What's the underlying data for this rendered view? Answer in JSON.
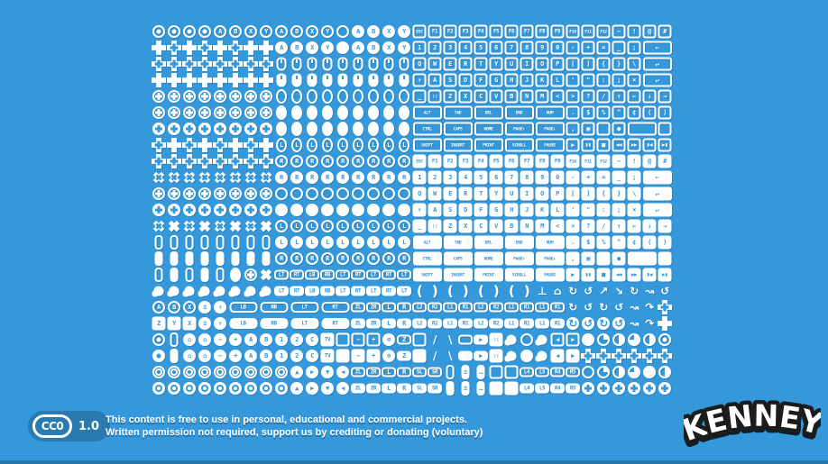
{
  "page": {
    "background_color": "#3498db",
    "bottom_edge_color": "rgba(0,0,0,0.22)",
    "icon_color": "#ffffff",
    "badge_color": "#2a7ab2"
  },
  "license": {
    "badge": {
      "cc_label": "CC0",
      "version": "1.0"
    },
    "line1": "This content is free to use in personal, educational and commercial projects.",
    "line2": "Written permission not required, support us by crediting or donating (voluntary)"
  },
  "brand": {
    "logo_text": "KENNEY"
  },
  "sprite_sheet": {
    "description": "pixel input-prompt icons: gamepad buttons, d-pads, sticks, mice, touch gestures and keyboard keys in outline and solid styles",
    "rows": [
      [
        "cd",
        "cd",
        "cd",
        "cd",
        "c:A",
        "c:B",
        "c:X",
        "c:Y",
        "c:A",
        "c:B",
        "c:X",
        "c:Y",
        "c",
        "C:A",
        "C:B",
        "C:X",
        "C:Y",
        "k:ESC",
        "k:F1",
        "k:F2",
        "k:F3",
        "k:F4",
        "k:F5",
        "k:F6",
        "k:F7",
        "k:F8",
        "k:F9",
        "k:F10",
        "k:F11",
        "k:F12",
        "k:~",
        "k:!",
        "k:@",
        "k:#"
      ],
      [
        "D",
        "d",
        "D",
        "d",
        "D",
        "d",
        "D",
        "D",
        "C:A",
        "C:B",
        "C:X",
        "C:Y",
        "C",
        "C:A",
        "C:B",
        "C:X",
        "C:Y",
        "k:1",
        "k:2",
        "k:3",
        "k:4",
        "k:5",
        "k:6",
        "k:7",
        "k:8",
        "k:9",
        "k:0",
        "k:-",
        "k:+",
        "k:=",
        "k:_",
        "k:;",
        "kw:←"
      ],
      [
        "d",
        "d",
        "d",
        "d",
        "d",
        "d",
        "d",
        "d",
        "m",
        "m",
        "m",
        "m",
        "m",
        "m",
        "m",
        "m",
        "m",
        "k:Q",
        "k:W",
        "k:E",
        "k:R",
        "k:T",
        "k:Y",
        "k:U",
        "k:I",
        "k:O",
        "k:P",
        "k:[",
        "k:]",
        "k:{",
        "k:}",
        "k:\\",
        "kw:↵"
      ],
      [
        "D",
        "D",
        "D",
        "D",
        "D",
        "D",
        "D",
        "D",
        "M",
        "M",
        "M",
        "M",
        "M",
        "M",
        "M",
        "M",
        "M",
        "k:↑",
        "k:A",
        "k:S",
        "k:D",
        "k:F",
        "k:G",
        "k:H",
        "k:J",
        "k:K",
        "k:L",
        "k:'",
        "k:\"",
        "k::",
        "k:;",
        "k:×",
        "kw:↵"
      ],
      [
        "rd",
        "rd",
        "rd",
        "rd",
        "rd",
        "rd",
        "rd",
        "rd",
        "o",
        "o",
        "o",
        "o",
        "o",
        "o",
        "o",
        "o",
        "o",
        "k:_",
        "k:::",
        "k:Z",
        "k:X",
        "k:C",
        "k:V",
        "k:B",
        "k:N",
        "k:M",
        "k:<",
        "k:>",
        "k:?",
        "k:/",
        "k:↑",
        "k:←",
        "k:↓",
        "k:→"
      ],
      [
        "rd",
        "rd",
        "rd",
        "rd",
        "rd",
        "rd",
        "rd",
        "rd",
        "O",
        "O",
        "O",
        "O",
        "O",
        "O",
        "O",
        "O",
        "O",
        "kw:ALT",
        "kw:TAB",
        "kw:DEL",
        "kw:END",
        "kw:NUM",
        "k:.",
        "k:$",
        "k:%",
        "k:^",
        "k:¢",
        "k:(",
        "k:)"
      ],
      [
        "RD",
        "RD",
        "RD",
        "RD",
        "RD",
        "RD",
        "RD",
        "RD",
        "O",
        "O",
        "O",
        "O",
        "O",
        "O",
        "O",
        "O",
        "O",
        "kw:CTRL",
        "kw:CAPS",
        "kw:HOME",
        "kw:PAGE↑",
        "kw:PAGE↓",
        "k:,",
        "k:▣",
        "kx",
        "k:●",
        "kw2",
        "kx"
      ],
      [
        "d",
        "D",
        "d",
        "D",
        "d",
        "D",
        "d",
        "D",
        "o:L",
        "o:L",
        "o:L",
        "o:L",
        "o:L",
        "o:L",
        "o:L",
        "o:L",
        "o:L",
        "kw:SHIFT",
        "kw:INSERT",
        "kw:PRINT",
        "kw:SCROLL",
        "kw:PAUSE",
        "k:▶",
        "k:▮▮",
        "k:■",
        "k:◀◀",
        "k:▶▶",
        "k:▮◀",
        "k:▶▮"
      ],
      [
        "d",
        "d",
        "d",
        "d",
        "d",
        "d",
        "d",
        "d",
        "c:R",
        "c:R",
        "c:R",
        "c:R",
        "c:R",
        "c:R",
        "c:R",
        "c:R",
        "c:R",
        "K:ESC",
        "K:F1",
        "K:F2",
        "K:F3",
        "K:F4",
        "K:F5",
        "K:F6",
        "K:F7",
        "K:F8",
        "K:F9",
        "K:F10",
        "K:F11",
        "K:F12",
        "K:~",
        "K:!",
        "K:@",
        "K:#"
      ],
      [
        "dm",
        "dm",
        "dm",
        "dm",
        "dm",
        "dm",
        "dm",
        "dm",
        "C:R",
        "C:R",
        "C:R",
        "C:R",
        "C:R",
        "C:R",
        "C:R",
        "C:R",
        "C:R",
        "K:1",
        "K:2",
        "K:3",
        "K:4",
        "K:5",
        "K:6",
        "K:7",
        "K:8",
        "K:9",
        "K:0",
        "K:-",
        "K:+",
        "K:=",
        "K:_",
        "K:;",
        "KW:←"
      ],
      [
        "rd",
        "rd",
        "rd",
        "rd",
        "rd",
        "rd",
        "rd",
        "rd",
        "c",
        "c",
        "c",
        "c",
        "c",
        "c",
        "c",
        "c",
        "c",
        "K:Q",
        "K:W",
        "K:E",
        "K:R",
        "K:T",
        "K:Y",
        "K:U",
        "K:I",
        "K:O",
        "K:P",
        "K:[",
        "K:]",
        "K:{",
        "K:}",
        "K:\\",
        "KW:↵"
      ],
      [
        "RD",
        "RD",
        "RD",
        "RD",
        "RD",
        "RD",
        "RD",
        "RD",
        "C",
        "C",
        "C",
        "C",
        "C",
        "C",
        "C",
        "C",
        "C",
        "K:↑",
        "K:A",
        "K:S",
        "K:D",
        "K:F",
        "K:G",
        "K:H",
        "K:J",
        "K:K",
        "K:L",
        "K:'",
        "K:\"",
        "K::",
        "K:;",
        "K:×",
        "KW:↵"
      ],
      [
        "dm",
        "DM",
        "dm",
        "DM",
        "dm",
        "DM",
        "dm",
        "DM",
        "c:L",
        "c:L",
        "c:L",
        "c:L",
        "c:L",
        "c:L",
        "c:L",
        "c:L",
        "c:L",
        "K:_",
        "K:::",
        "K:Z",
        "K:X",
        "K:C",
        "K:V",
        "K:B",
        "K:N",
        "K:M",
        "K:<",
        "K:>",
        "K:?",
        "K:/",
        "K:↑",
        "K:←",
        "K:↓",
        "K:→"
      ],
      [
        "p",
        "p",
        "p",
        "p",
        "p",
        "p",
        "p",
        "p",
        "C:L",
        "C:L",
        "C:L",
        "C:L",
        "C:L",
        "C:L",
        "C:L",
        "C:L",
        "C:L",
        "KW:ALT",
        "KW:TAB",
        "KW:DEL",
        "KW:END",
        "KW:NUM",
        "K:.",
        "K:$",
        "K:%",
        "K:^",
        "K:¢",
        "K:(",
        "K:)"
      ],
      [
        "P",
        "P",
        "P",
        "P",
        "P",
        "P",
        "P",
        "P",
        "c:R",
        "c:R",
        "c:R",
        "c:R",
        "c:R",
        "c:R",
        "c:R",
        "c:R",
        "c:R",
        "KW:CTRL",
        "KW:CAPS",
        "KW:HOME",
        "KW:PAGE↑",
        "KW:PAGE↓",
        "K:,",
        "K:▣",
        "KX",
        "K:●",
        "KW2",
        "KX"
      ],
      [
        "p",
        "P",
        "p",
        "P",
        "p",
        "O",
        "rd",
        "DM",
        "t:LT",
        "t:RT",
        "t:LB",
        "t:RB",
        "t:LT",
        "t:RT",
        "t:LT",
        "t:RT",
        "t:LT",
        "KW:SHIFT",
        "KW:INSERT",
        "KW:PRINT",
        "KW:SCROLL",
        "KW:PAUSE",
        "K:▶",
        "K:▮▮",
        "K:■",
        "K:◀◀",
        "K:▶▶",
        "K:▮◀",
        "K:▶▮"
      ],
      [
        "h",
        "h",
        "h",
        "h",
        "h",
        "h",
        "h",
        "h",
        "T:LT",
        "T:RT",
        "T:LB",
        "T:RB",
        "T:LT",
        "T:RT",
        "T:LT",
        "T:RT",
        "T:LT",
        "g:(",
        "g:)",
        "g:(",
        "g:)",
        "g:(",
        "g:)",
        "g:(",
        "g:)",
        "g:⊥",
        "g:⌂",
        "g:↻",
        "g:↺",
        "g:↗",
        "g:↘",
        "g:↻",
        "g:↝",
        "g:↺"
      ],
      [
        "c:A",
        "c:B",
        "c:X",
        "C:≡",
        "C:↑",
        "tw:LB",
        "tw:RB",
        "tw:LT",
        "tw:RT",
        "t:ZL",
        "t:ZR",
        "t:L",
        "t:R",
        "t:L2",
        "t:R2",
        "t:L1",
        "t:R1",
        "t:L2",
        "t:R2",
        "t:L1",
        "t:R1",
        "t:L1",
        "t:R1",
        "g:↻",
        "g:↺",
        "g:↻",
        "g:↺",
        "g:↝",
        "g:↷",
        "d"
      ],
      [
        "K:Z",
        "K:Y",
        "K:X",
        "C:≡",
        "C:↑",
        "TW:LB",
        "TW:RB",
        "TW:LT",
        "TW:RT",
        "T:ZL",
        "T:ZR",
        "T:L",
        "T:R",
        "T:L2",
        "T:R2",
        "T:L1",
        "T:R1",
        "T:L2",
        "T:R2",
        "T:L1",
        "T:R1",
        "T:L1",
        "T:R1",
        "G:↻",
        "G:↺",
        "G:↻",
        "G:↺",
        "g:↝",
        "g:↷",
        "D"
      ],
      [
        "cd",
        "p",
        "C:⌂",
        "C:⌂",
        "C:−",
        "C:+",
        "C:A",
        "C:B",
        "C:1",
        "C:2",
        "C:C",
        "K:TV",
        "kx",
        "k:−",
        "k:+",
        "C:⊙",
        "t:Z",
        "kx",
        "g:/",
        "g:\\",
        "t",
        "T:▶",
        "K:::",
        "h",
        "c",
        "h",
        "k:◀",
        "k:▶",
        "C",
        "q1",
        "q2",
        "q3",
        "q2",
        "cd"
      ],
      [
        "Cd",
        "P",
        "C:⌂",
        "C:⌂",
        "C:−",
        "C:+",
        "C:A",
        "C:B",
        "C:1",
        "C:2",
        "C:C",
        "K:TV",
        "KX",
        "K:−",
        "K:+",
        "C:⊙",
        "T:Z",
        "KX",
        "g:/",
        "g:\\",
        "T",
        "T:▶",
        "K:::",
        "h",
        "C",
        "h",
        "K:◀",
        "K:▶",
        "d",
        "d",
        "d",
        "d",
        "d",
        "d"
      ],
      [
        "od",
        "od",
        "od",
        "od",
        "od",
        "od",
        "od",
        "od",
        "od",
        "C:▲",
        "C:▶",
        "C:▼",
        "C:◀",
        "t:ZL",
        "t:ZR",
        "t:L",
        "t:R",
        "t:SL",
        "t:SR",
        "p",
        "P:≡",
        "P:…",
        "kx",
        "kx",
        "t:L4",
        "t:L5",
        "t:R4",
        "t:R5",
        "q0",
        "q1",
        "q2",
        "q3",
        "q4",
        "q2"
      ],
      [
        "OD",
        "OD",
        "OD",
        "OD",
        "OD",
        "OD",
        "OD",
        "OD",
        "OD",
        "C:▲",
        "C:▶",
        "C:▼",
        "C:◀",
        "T:ZL",
        "T:ZR",
        "T:L",
        "T:R",
        "T:SL",
        "T:SR",
        "P",
        "P:≡",
        "P:…",
        "KX",
        "KX",
        "T:L4",
        "T:L5",
        "T:R4",
        "T:R5",
        "RD",
        "RD",
        "RD",
        "RD",
        "RD",
        "RD"
      ]
    ]
  }
}
